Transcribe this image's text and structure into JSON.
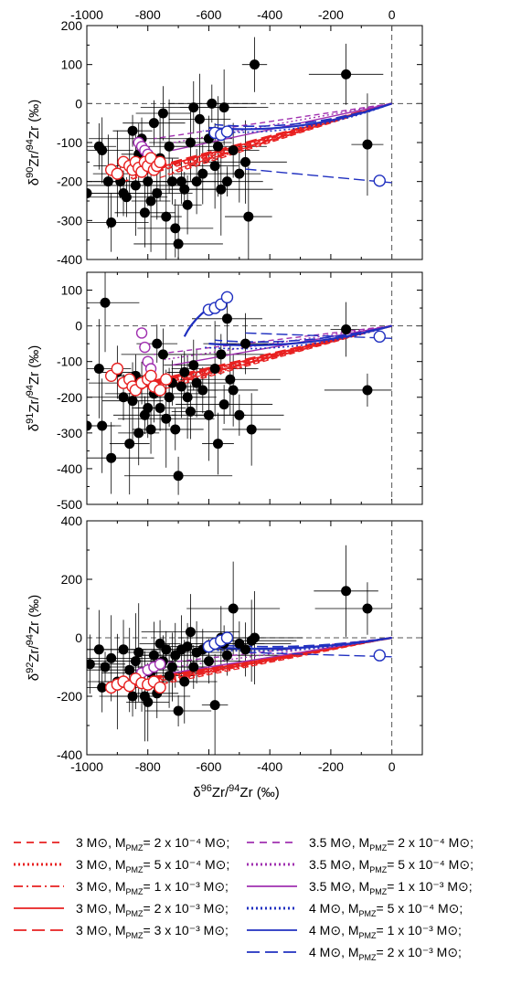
{
  "chart_data": [
    {
      "type": "scatter",
      "id": "d90",
      "ylabel": {
        "delta": "δ",
        "sup1": "90",
        "mid": "Zr/",
        "sup2": "94",
        "end": "Zr (‰)"
      },
      "xlim": [
        -1000,
        100
      ],
      "ylim": [
        -400,
        200
      ],
      "xticks": [
        -1000,
        -800,
        -600,
        -400,
        -200,
        0
      ],
      "yticks": [
        -400,
        -300,
        -200,
        -100,
        0,
        100,
        200
      ],
      "top_tick_labels": [
        "-1000",
        "-800",
        "-600",
        "-400",
        "-200",
        "0"
      ],
      "black_points": [
        [
          -1000,
          -230
        ],
        [
          -960,
          -110
        ],
        [
          -950,
          -120
        ],
        [
          -930,
          -200
        ],
        [
          -920,
          -305
        ],
        [
          -900,
          -180
        ],
        [
          -890,
          -200
        ],
        [
          -880,
          -230
        ],
        [
          -870,
          -240
        ],
        [
          -860,
          -160
        ],
        [
          -850,
          -70
        ],
        [
          -840,
          -210
        ],
        [
          -830,
          -130
        ],
        [
          -820,
          -90
        ],
        [
          -810,
          -280
        ],
        [
          -800,
          -200
        ],
        [
          -790,
          -250
        ],
        [
          -780,
          -50
        ],
        [
          -770,
          -230
        ],
        [
          -760,
          -140
        ],
        [
          -750,
          -25
        ],
        [
          -740,
          -290
        ],
        [
          -730,
          -110
        ],
        [
          -720,
          -200
        ],
        [
          -710,
          -320
        ],
        [
          -700,
          -360
        ],
        [
          -690,
          -200
        ],
        [
          -680,
          -220
        ],
        [
          -670,
          -260
        ],
        [
          -660,
          -100
        ],
        [
          -650,
          -10
        ],
        [
          -640,
          -200
        ],
        [
          -630,
          -40
        ],
        [
          -620,
          -180
        ],
        [
          -600,
          -90
        ],
        [
          -590,
          0
        ],
        [
          -580,
          -160
        ],
        [
          -570,
          -110
        ],
        [
          -560,
          -220
        ],
        [
          -550,
          -10
        ],
        [
          -540,
          -200
        ],
        [
          -520,
          -120
        ],
        [
          -500,
          -180
        ],
        [
          -480,
          -150
        ],
        [
          -470,
          -290
        ],
        [
          -450,
          100
        ],
        [
          -150,
          75
        ],
        [
          -80,
          -105
        ]
      ],
      "open_red_points": [
        [
          -920,
          -170
        ],
        [
          -900,
          -180
        ],
        [
          -880,
          -150
        ],
        [
          -860,
          -160
        ],
        [
          -850,
          -170
        ],
        [
          -840,
          -150
        ],
        [
          -830,
          -165
        ],
        [
          -820,
          -175
        ],
        [
          -810,
          -150
        ],
        [
          -800,
          -160
        ],
        [
          -790,
          -140
        ],
        [
          -780,
          -170
        ],
        [
          -770,
          -160
        ],
        [
          -760,
          -150
        ]
      ],
      "open_purple_points": [
        [
          -830,
          -100
        ],
        [
          -820,
          -110
        ],
        [
          -810,
          -120
        ],
        [
          -800,
          -130
        ],
        [
          -790,
          -140
        ],
        [
          -780,
          -150
        ],
        [
          -770,
          -160
        ]
      ],
      "open_blue_points": [
        [
          -580,
          -75
        ],
        [
          -560,
          -80
        ],
        [
          -540,
          -72
        ],
        [
          -40,
          -198
        ]
      ]
    },
    {
      "type": "scatter",
      "id": "d91",
      "ylabel": {
        "delta": "δ",
        "sup1": "91",
        "mid": "Zr/",
        "sup2": "94",
        "end": "Zr (‰)"
      },
      "xlim": [
        -1000,
        100
      ],
      "ylim": [
        -500,
        150
      ],
      "yticks": [
        -500,
        -400,
        -300,
        -200,
        -100,
        0,
        100
      ],
      "black_points": [
        [
          -1000,
          -280
        ],
        [
          -960,
          -120
        ],
        [
          -950,
          -280
        ],
        [
          -940,
          65
        ],
        [
          -920,
          -370
        ],
        [
          -900,
          -130
        ],
        [
          -880,
          -200
        ],
        [
          -860,
          -330
        ],
        [
          -850,
          -210
        ],
        [
          -840,
          -140
        ],
        [
          -830,
          -300
        ],
        [
          -820,
          -160
        ],
        [
          -810,
          -250
        ],
        [
          -800,
          -230
        ],
        [
          -790,
          -290
        ],
        [
          -780,
          -190
        ],
        [
          -770,
          -50
        ],
        [
          -760,
          -230
        ],
        [
          -750,
          -80
        ],
        [
          -740,
          -260
        ],
        [
          -730,
          -200
        ],
        [
          -720,
          -160
        ],
        [
          -710,
          -290
        ],
        [
          -700,
          -420
        ],
        [
          -690,
          -170
        ],
        [
          -680,
          -130
        ],
        [
          -670,
          -200
        ],
        [
          -660,
          -240
        ],
        [
          -650,
          -110
        ],
        [
          -640,
          -160
        ],
        [
          -620,
          -180
        ],
        [
          -600,
          -250
        ],
        [
          -580,
          -120
        ],
        [
          -570,
          -330
        ],
        [
          -560,
          -80
        ],
        [
          -550,
          -220
        ],
        [
          -540,
          20
        ],
        [
          -530,
          -150
        ],
        [
          -520,
          -180
        ],
        [
          -500,
          -250
        ],
        [
          -480,
          -50
        ],
        [
          -460,
          -290
        ],
        [
          -150,
          -10
        ],
        [
          -80,
          -180
        ]
      ],
      "open_red_points": [
        [
          -920,
          -140
        ],
        [
          -900,
          -120
        ],
        [
          -880,
          -160
        ],
        [
          -860,
          -150
        ],
        [
          -850,
          -170
        ],
        [
          -840,
          -180
        ],
        [
          -820,
          -160
        ],
        [
          -800,
          -150
        ],
        [
          -790,
          -140
        ],
        [
          -780,
          -170
        ],
        [
          -760,
          -180
        ],
        [
          -740,
          -150
        ]
      ],
      "open_purple_points": [
        [
          -820,
          -20
        ],
        [
          -810,
          -60
        ],
        [
          -800,
          -100
        ],
        [
          -790,
          -120
        ]
      ],
      "open_blue_points": [
        [
          -600,
          45
        ],
        [
          -580,
          50
        ],
        [
          -560,
          60
        ],
        [
          -540,
          80
        ],
        [
          -40,
          -30
        ]
      ]
    },
    {
      "type": "scatter",
      "id": "d92",
      "ylabel": {
        "delta": "δ",
        "sup1": "92",
        "mid": "Zr/",
        "sup2": "94",
        "end": "Zr (‰)"
      },
      "xlabel": {
        "delta": "δ",
        "sup1": "96",
        "mid": "Zr/",
        "sup2": "94",
        "end": "Zr (‰)"
      },
      "xlim": [
        -1000,
        100
      ],
      "ylim": [
        -400,
        400
      ],
      "xticks": [
        -1000,
        -800,
        -600,
        -400,
        -200,
        0
      ],
      "yticks": [
        -400,
        -200,
        0,
        200,
        400
      ],
      "bottom_tick_labels": [
        "-1000",
        "-800",
        "-600",
        "-400",
        "-200",
        "0"
      ],
      "black_points": [
        [
          -990,
          -90
        ],
        [
          -960,
          -40
        ],
        [
          -950,
          -170
        ],
        [
          -940,
          -100
        ],
        [
          -920,
          -70
        ],
        [
          -900,
          -150
        ],
        [
          -880,
          -40
        ],
        [
          -860,
          -110
        ],
        [
          -850,
          -200
        ],
        [
          -840,
          -80
        ],
        [
          -830,
          -50
        ],
        [
          -820,
          -150
        ],
        [
          -810,
          -200
        ],
        [
          -800,
          -220
        ],
        [
          -790,
          -120
        ],
        [
          -780,
          -60
        ],
        [
          -770,
          -190
        ],
        [
          -760,
          -20
        ],
        [
          -750,
          -80
        ],
        [
          -740,
          -40
        ],
        [
          -730,
          -130
        ],
        [
          -720,
          -100
        ],
        [
          -710,
          -60
        ],
        [
          -700,
          -250
        ],
        [
          -690,
          -40
        ],
        [
          -680,
          -150
        ],
        [
          -670,
          -30
        ],
        [
          -660,
          20
        ],
        [
          -650,
          -100
        ],
        [
          -640,
          -50
        ],
        [
          -620,
          -40
        ],
        [
          -600,
          -80
        ],
        [
          -580,
          -230
        ],
        [
          -560,
          0
        ],
        [
          -550,
          -20
        ],
        [
          -540,
          -60
        ],
        [
          -520,
          100
        ],
        [
          -500,
          -20
        ],
        [
          -480,
          -40
        ],
        [
          -460,
          -10
        ],
        [
          -450,
          0
        ],
        [
          -150,
          160
        ],
        [
          -80,
          100
        ]
      ],
      "open_red_points": [
        [
          -920,
          -170
        ],
        [
          -900,
          -160
        ],
        [
          -880,
          -150
        ],
        [
          -860,
          -165
        ],
        [
          -840,
          -140
        ],
        [
          -820,
          -155
        ],
        [
          -800,
          -160
        ],
        [
          -780,
          -150
        ],
        [
          -760,
          -170
        ]
      ],
      "open_purple_points": [
        [
          -820,
          -120
        ],
        [
          -800,
          -110
        ],
        [
          -780,
          -100
        ],
        [
          -760,
          -90
        ]
      ],
      "open_blue_points": [
        [
          -600,
          -30
        ],
        [
          -580,
          -20
        ],
        [
          -560,
          -10
        ],
        [
          -540,
          0
        ],
        [
          -40,
          -60
        ]
      ]
    }
  ],
  "legend": {
    "unit": "M⊙",
    "label_prefix": "M",
    "label_sub": "PMZ",
    "entries": [
      {
        "mass": "3",
        "mpmz": "2 x 10⁻⁴",
        "color": "#e82020",
        "style": "dashed"
      },
      {
        "mass": "3",
        "mpmz": "5 x 10⁻⁴",
        "color": "#e82020",
        "style": "dotted"
      },
      {
        "mass": "3",
        "mpmz": "1 x 10⁻³",
        "color": "#e82020",
        "style": "dashdot"
      },
      {
        "mass": "3",
        "mpmz": "2 x 10⁻³",
        "color": "#e82020",
        "style": "solid"
      },
      {
        "mass": "3",
        "mpmz": "3 x 10⁻³",
        "color": "#e82020",
        "style": "longdash"
      },
      {
        "mass": "3.5",
        "mpmz": "2 x 10⁻⁴",
        "color": "#a030b0",
        "style": "dashed"
      },
      {
        "mass": "3.5",
        "mpmz": "5 x 10⁻⁴",
        "color": "#a030b0",
        "style": "dotted"
      },
      {
        "mass": "3.5",
        "mpmz": "1 x 10⁻³",
        "color": "#a030b0",
        "style": "solid"
      },
      {
        "mass": "4",
        "mpmz": "5 x 10⁻⁴",
        "color": "#2030c0",
        "style": "dotted"
      },
      {
        "mass": "4",
        "mpmz": "1 x 10⁻³",
        "color": "#2030c0",
        "style": "solid"
      },
      {
        "mass": "4",
        "mpmz": "2 x 10⁻³",
        "color": "#2030c0",
        "style": "longdash"
      }
    ]
  },
  "colors": {
    "red": "#e82020",
    "purple": "#a030b0",
    "blue": "#2030c0",
    "black": "#000000"
  }
}
